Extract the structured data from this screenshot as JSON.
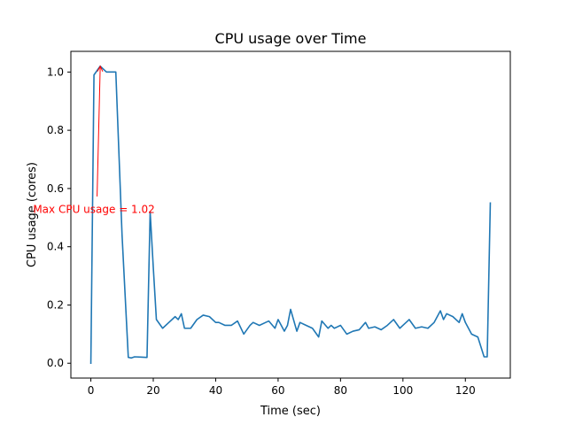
{
  "chart_data": {
    "type": "line",
    "title": "CPU usage over Time",
    "xlabel": "Time (sec)",
    "ylabel": "CPU usage (cores)",
    "xlim": [
      -6.4,
      134.4
    ],
    "ylim": [
      -0.051,
      1.071
    ],
    "xticks": [
      0,
      20,
      40,
      60,
      80,
      100,
      120
    ],
    "xtick_labels": [
      "0",
      "20",
      "40",
      "60",
      "80",
      "100",
      "120"
    ],
    "yticks": [
      0.0,
      0.2,
      0.4,
      0.6,
      0.8,
      1.0
    ],
    "ytick_labels": [
      "0.0",
      "0.2",
      "0.4",
      "0.6",
      "0.8",
      "1.0"
    ],
    "grid": false,
    "series": [
      {
        "name": "CPU usage",
        "color": "#1f77b4",
        "x": [
          0,
          1,
          3,
          5,
          8,
          10,
          12,
          13,
          14,
          16,
          18,
          19,
          20,
          21,
          23,
          25,
          27,
          28,
          29,
          30,
          32,
          34,
          36,
          38,
          40,
          41,
          43,
          45,
          47,
          49,
          51,
          52,
          54,
          56,
          57,
          59,
          60,
          62,
          63,
          64,
          66,
          67,
          69,
          71,
          73,
          74,
          76,
          77,
          78,
          80,
          82,
          84,
          86,
          88,
          89,
          91,
          93,
          95,
          97,
          99,
          100,
          102,
          104,
          106,
          108,
          110,
          112,
          113,
          114,
          116,
          118,
          119,
          120,
          122,
          124,
          126,
          127,
          128
        ],
        "y": [
          0.0,
          0.99,
          1.02,
          1.0,
          1.0,
          0.44,
          0.02,
          0.018,
          0.022,
          0.021,
          0.02,
          0.52,
          0.33,
          0.15,
          0.12,
          0.14,
          0.16,
          0.15,
          0.17,
          0.12,
          0.12,
          0.15,
          0.165,
          0.16,
          0.14,
          0.14,
          0.13,
          0.13,
          0.145,
          0.1,
          0.13,
          0.14,
          0.13,
          0.14,
          0.145,
          0.12,
          0.15,
          0.11,
          0.13,
          0.185,
          0.11,
          0.14,
          0.13,
          0.12,
          0.09,
          0.145,
          0.12,
          0.13,
          0.12,
          0.13,
          0.1,
          0.11,
          0.115,
          0.14,
          0.12,
          0.125,
          0.115,
          0.13,
          0.15,
          0.12,
          0.13,
          0.15,
          0.12,
          0.125,
          0.12,
          0.14,
          0.18,
          0.15,
          0.17,
          0.16,
          0.14,
          0.17,
          0.14,
          0.1,
          0.09,
          0.022,
          0.022,
          0.55
        ]
      }
    ],
    "annotation": {
      "text": "Max CPU usage = 1.02",
      "color": "#ff0000",
      "point": [
        3,
        1.02
      ],
      "text_anchor_point": [
        1.0,
        0.53
      ]
    }
  }
}
